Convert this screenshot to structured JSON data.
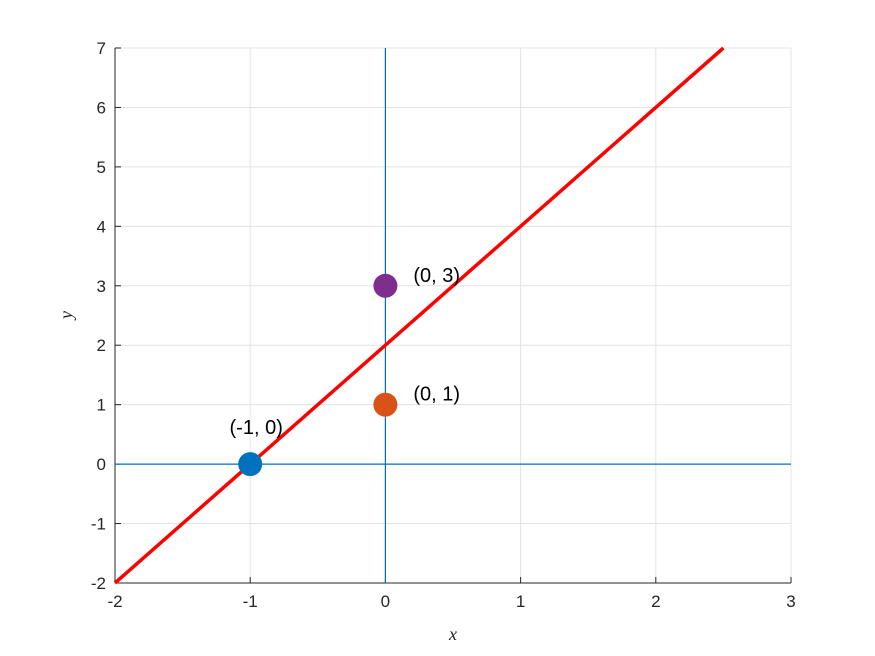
{
  "chart_data": {
    "type": "line",
    "x_label": "x",
    "y_label": "y",
    "xlim": [
      -2,
      3
    ],
    "ylim": [
      -2,
      7
    ],
    "xticks": [
      -2,
      -1,
      0,
      1,
      2,
      3
    ],
    "yticks": [
      -2,
      -1,
      0,
      1,
      2,
      3,
      4,
      5,
      6,
      7
    ],
    "grid": true,
    "xline": [
      0
    ],
    "yline": [
      0
    ],
    "reference_line_color": "#0072bd",
    "series": [
      {
        "color": "#ff0000",
        "x": [
          -2,
          2.5
        ],
        "values": [
          -2,
          7
        ]
      }
    ],
    "points": [
      {
        "x": -1,
        "y": 0,
        "label": "(-1, 0)",
        "color": "#0072bd",
        "label_side": "top"
      },
      {
        "x": 0,
        "y": 1,
        "label": "(0, 1)",
        "color": "#d95319",
        "label_side": "right"
      },
      {
        "x": 0,
        "y": 3,
        "label": "(0, 3)",
        "color": "#7e2f8e",
        "label_side": "right"
      }
    ]
  }
}
